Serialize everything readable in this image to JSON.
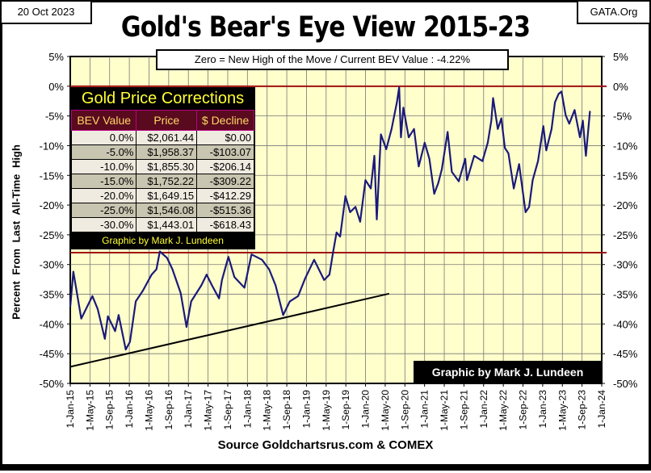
{
  "header": {
    "date": "20 Oct 2023",
    "site": "GATA.Org",
    "title": "Gold's Bear's Eye View 2015-23",
    "subtitle": "Zero = New High of the Move / Current  BEV Value : -4.22%",
    "source": "Source Goldchartsrus.com & COMEX",
    "credit": "Graphic by Mark J. Lundeen"
  },
  "table": {
    "title": "Gold Price Corrections",
    "headers": [
      "BEV Value",
      "Price",
      "$ Decline"
    ],
    "rows": [
      [
        "0.0%",
        "$2,061.44",
        "$0.00"
      ],
      [
        "-5.0%",
        "$1,958.37",
        "-$103.07"
      ],
      [
        "-10.0%",
        "$1,855.30",
        "-$206.14"
      ],
      [
        "-15.0%",
        "$1,752.22",
        "-$309.22"
      ],
      [
        "-20.0%",
        "$1,649.15",
        "-$412.29"
      ],
      [
        "-25.0%",
        "$1,546.08",
        "-$515.36"
      ],
      [
        "-30.0%",
        "$1,443.01",
        "-$618.43"
      ]
    ],
    "footer": "Graphic by Mark J. Lundeen"
  },
  "chart_data": {
    "type": "line",
    "title": "Gold's Bear's Eye View 2015-23",
    "ylabel": "Percent  From  Last  All-Time  High",
    "xlabel": "",
    "ylim": [
      -50,
      5
    ],
    "xlim": [
      "2015-01-01",
      "2024-01-01"
    ],
    "grid": true,
    "colors": {
      "line": "#1a1a7a",
      "reference": "#a01010",
      "trend": "#000000",
      "plot_bg": "#ffffcc"
    },
    "yticks": [
      "5%",
      "0%",
      "-5%",
      "-10%",
      "-15%",
      "-20%",
      "-25%",
      "-30%",
      "-35%",
      "-40%",
      "-45%",
      "-50%"
    ],
    "xticks": [
      "1-Jan-15",
      "1-May-15",
      "1-Sep-15",
      "1-Jan-16",
      "1-May-16",
      "1-Sep-16",
      "1-Jan-17",
      "1-May-17",
      "1-Sep-17",
      "1-Jan-18",
      "1-May-18",
      "1-Sep-18",
      "1-Jan-19",
      "1-May-19",
      "1-Sep-19",
      "1-Jan-20",
      "1-May-20",
      "1-Sep-20",
      "1-Jan-21",
      "1-May-21",
      "1-Sep-21",
      "1-Jan-22",
      "1-May-22",
      "1-Sep-22",
      "1-Jan-23",
      "1-May-23",
      "1-Sep-23",
      "1-Jan-24"
    ],
    "reference_lines": [
      0,
      -28
    ],
    "trend_line": [
      [
        "2015-01-01",
        -47.2
      ],
      [
        "2020-05-26",
        -34.9
      ]
    ],
    "series": [
      {
        "x": [
          "2015-01-01",
          "2015-01-20",
          "2015-03-10",
          "2015-05-18",
          "2015-06-20",
          "2015-08-03",
          "2015-08-22",
          "2015-10-05",
          "2015-10-27",
          "2015-12-10",
          "2016-01-05",
          "2016-02-10",
          "2016-03-25",
          "2016-05-18",
          "2016-06-17",
          "2016-07-08",
          "2016-08-22",
          "2016-09-24",
          "2016-11-14",
          "2016-12-20",
          "2017-01-18",
          "2017-03-22",
          "2017-04-23",
          "2017-05-26",
          "2017-07-09",
          "2017-07-27",
          "2017-09-05",
          "2017-10-12",
          "2017-12-13",
          "2018-01-26",
          "2018-04-01",
          "2018-05-15",
          "2018-06-24",
          "2018-08-10",
          "2018-09-20",
          "2018-11-10",
          "2018-12-24",
          "2019-02-17",
          "2019-04-20",
          "2019-05-23",
          "2019-06-14",
          "2019-07-06",
          "2019-07-28",
          "2019-08-30",
          "2019-09-28",
          "2019-10-31",
          "2019-11-29",
          "2020-01-01",
          "2020-02-03",
          "2020-02-25",
          "2020-03-11",
          "2020-04-05",
          "2020-05-08",
          "2020-06-10",
          "2020-07-13",
          "2020-07-27",
          "2020-08-07",
          "2020-08-22",
          "2020-09-24",
          "2020-10-27",
          "2020-11-25",
          "2021-01-01",
          "2021-01-30",
          "2021-03-01",
          "2021-03-26",
          "2021-04-17",
          "2021-05-23",
          "2021-06-18",
          "2021-07-31",
          "2021-09-09",
          "2021-09-20",
          "2021-11-03",
          "2021-12-24",
          "2022-01-26",
          "2022-02-17",
          "2022-02-28",
          "2022-03-29",
          "2022-04-20",
          "2022-05-12",
          "2022-06-03",
          "2022-07-06",
          "2022-08-08",
          "2022-09-17",
          "2022-10-09",
          "2022-10-31",
          "2022-12-03",
          "2023-01-05",
          "2023-01-23",
          "2023-02-25",
          "2023-03-18",
          "2023-04-09",
          "2023-04-27",
          "2023-05-23",
          "2023-06-14",
          "2023-07-17",
          "2023-08-19",
          "2023-09-06",
          "2023-09-25",
          "2023-10-20"
        ],
        "values": [
          -37.1,
          -31.2,
          -39.1,
          -35.3,
          -37.5,
          -42.5,
          -38.7,
          -41.2,
          -38.5,
          -44.3,
          -43.0,
          -36.2,
          -34.4,
          -31.7,
          -30.8,
          -27.8,
          -28.9,
          -30.8,
          -34.8,
          -40.5,
          -36.2,
          -33.5,
          -31.7,
          -33.5,
          -35.7,
          -32.6,
          -28.7,
          -32.1,
          -33.9,
          -28.3,
          -29.2,
          -30.8,
          -33.5,
          -38.5,
          -36.2,
          -35.3,
          -32.3,
          -29.2,
          -32.6,
          -31.7,
          -28.0,
          -24.6,
          -25.3,
          -18.5,
          -21.2,
          -20.3,
          -22.8,
          -15.8,
          -17.2,
          -11.7,
          -22.4,
          -8.1,
          -10.6,
          -7.2,
          -2.7,
          -0.2,
          -8.6,
          -3.6,
          -8.6,
          -7.2,
          -13.5,
          -9.5,
          -12.2,
          -18.1,
          -16.3,
          -14.0,
          -7.7,
          -14.4,
          -16.0,
          -12.2,
          -15.8,
          -11.7,
          -12.6,
          -9.5,
          -5.8,
          -2.0,
          -7.2,
          -5.4,
          -10.4,
          -11.3,
          -17.2,
          -13.1,
          -21.2,
          -20.3,
          -15.8,
          -12.6,
          -6.7,
          -10.8,
          -7.2,
          -2.7,
          -1.3,
          -0.9,
          -4.9,
          -6.3,
          -4.0,
          -8.6,
          -5.8,
          -11.7,
          -4.22
        ]
      }
    ]
  }
}
